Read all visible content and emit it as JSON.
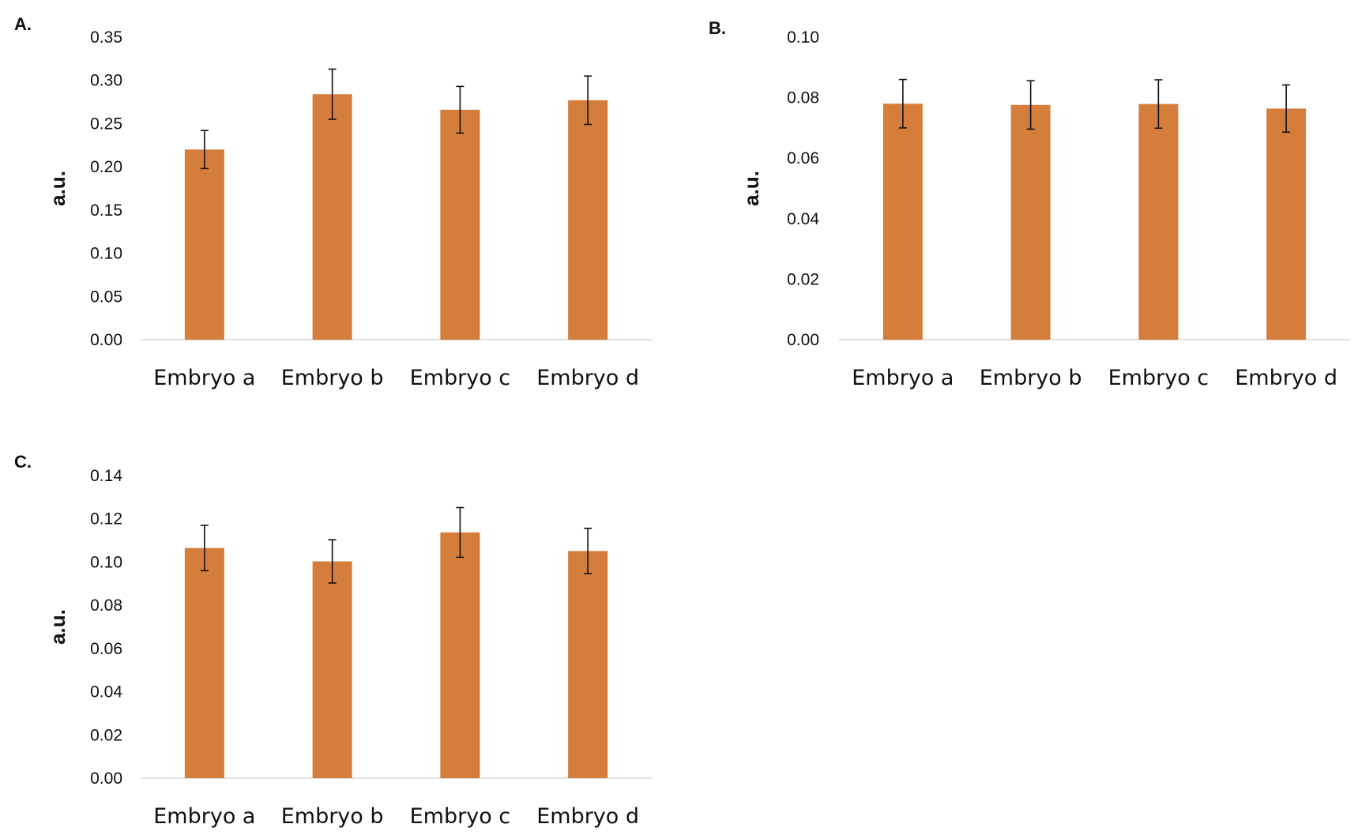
{
  "chart_data": [
    {
      "panel": "A.",
      "type": "bar",
      "categories": [
        "Embryo a",
        "Embryo b",
        "Embryo c",
        "Embryo d"
      ],
      "values": [
        0.22,
        0.284,
        0.266,
        0.277
      ],
      "errors": [
        0.022,
        0.029,
        0.027,
        0.028
      ],
      "ylabel": "a.u.",
      "ylim": [
        0,
        0.35
      ],
      "yticks": [
        "0.00",
        "0.05",
        "0.10",
        "0.15",
        "0.20",
        "0.25",
        "0.30",
        "0.35"
      ],
      "bar_color": "#D57E3B"
    },
    {
      "panel": "B.",
      "type": "bar",
      "categories": [
        "Embryo a",
        "Embryo b",
        "Embryo c",
        "Embryo d"
      ],
      "values": [
        0.078,
        0.0776,
        0.0779,
        0.0764
      ],
      "errors": [
        0.008,
        0.008,
        0.008,
        0.0078
      ],
      "ylabel": "a.u.",
      "ylim": [
        0,
        0.1
      ],
      "yticks": [
        "0.00",
        "0.02",
        "0.04",
        "0.06",
        "0.08",
        "0.10"
      ],
      "bar_color": "#D57E3B"
    },
    {
      "panel": "C.",
      "type": "bar",
      "categories": [
        "Embryo a",
        "Embryo b",
        "Embryo c",
        "Embryo d"
      ],
      "values": [
        0.1065,
        0.1003,
        0.1137,
        0.1051
      ],
      "errors": [
        0.0105,
        0.01,
        0.0115,
        0.0105
      ],
      "ylabel": "a.u.",
      "ylim": [
        0,
        0.14
      ],
      "yticks": [
        "0.00",
        "0.02",
        "0.04",
        "0.06",
        "0.08",
        "0.10",
        "0.12",
        "0.14"
      ],
      "bar_color": "#D57E3B"
    }
  ]
}
